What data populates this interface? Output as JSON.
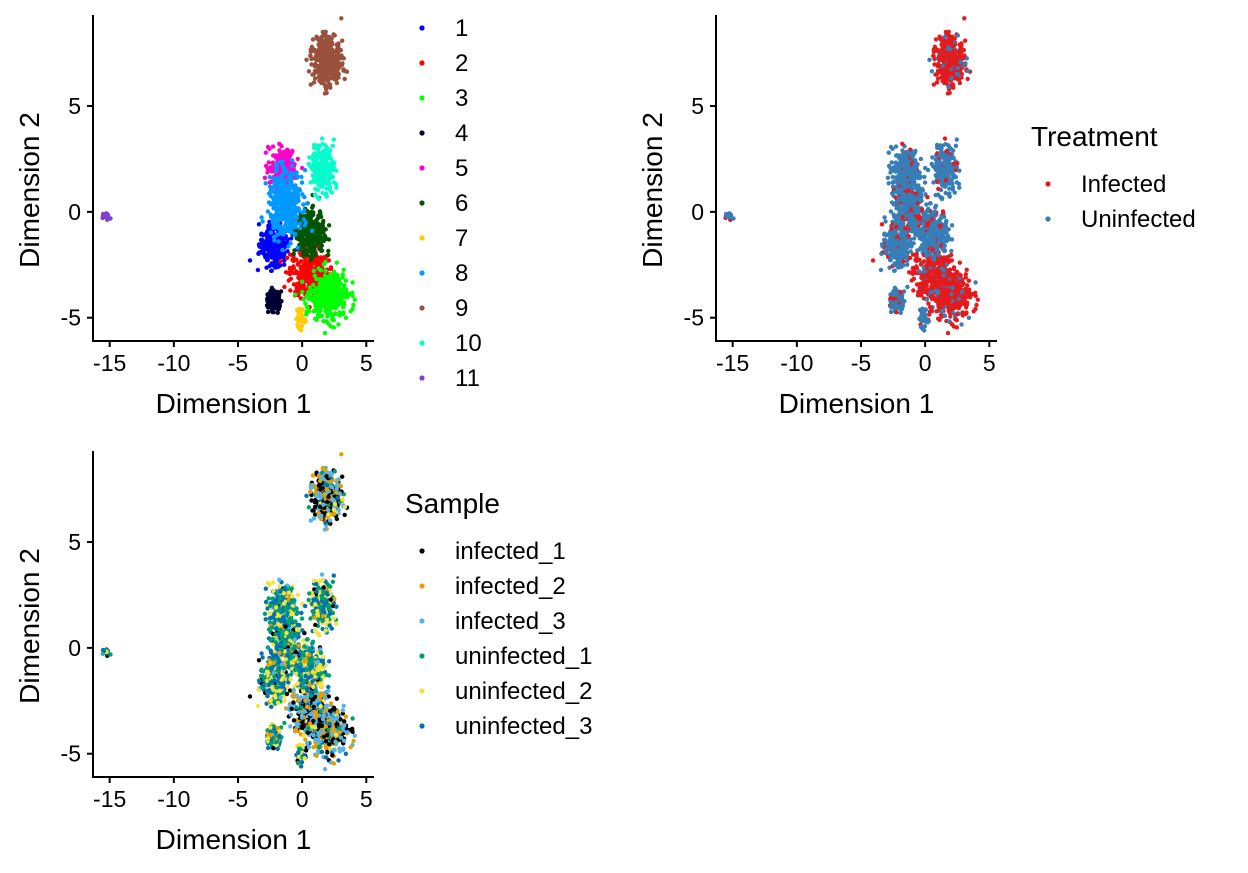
{
  "chart_data": [
    {
      "type": "scatter",
      "panel": "clusters",
      "xlabel": "Dimension 1",
      "ylabel": "Dimension 2",
      "xlim": [
        -16.3,
        5.6
      ],
      "ylim": [
        -6.1,
        9.3
      ],
      "xticks": [
        -15,
        -10,
        -5,
        0,
        5
      ],
      "yticks": [
        -5,
        0,
        5
      ],
      "legend": {
        "title": "",
        "position": "right"
      },
      "series": [
        {
          "name": "1",
          "color": "#0000FF",
          "x": -2.2,
          "y": -1.5
        },
        {
          "name": "2",
          "color": "#FF0000",
          "x": 0.5,
          "y": -3.0
        },
        {
          "name": "3",
          "color": "#00FF00",
          "x": 2.0,
          "y": -4.0
        },
        {
          "name": "4",
          "color": "#000033",
          "x": -2.2,
          "y": -4.2
        },
        {
          "name": "5",
          "color": "#FF00CC",
          "x": -1.5,
          "y": 2.0
        },
        {
          "name": "6",
          "color": "#005500",
          "x": 0.6,
          "y": -1.0
        },
        {
          "name": "7",
          "color": "#FFCC00",
          "x": -0.1,
          "y": -5.0
        },
        {
          "name": "8",
          "color": "#0099FF",
          "x": -1.2,
          "y": 0.5
        },
        {
          "name": "9",
          "color": "#99513D",
          "x": 2.0,
          "y": 7.0
        },
        {
          "name": "10",
          "color": "#00FFCC",
          "x": 1.6,
          "y": 2.0
        },
        {
          "name": "11",
          "color": "#8040CC",
          "x": -15.3,
          "y": -0.2
        }
      ]
    },
    {
      "type": "scatter",
      "panel": "treatment",
      "xlabel": "Dimension 1",
      "ylabel": "Dimension 2",
      "xlim": [
        -16.3,
        5.6
      ],
      "ylim": [
        -6.1,
        9.3
      ],
      "xticks": [
        -15,
        -10,
        -5,
        0,
        5
      ],
      "yticks": [
        -5,
        0,
        5
      ],
      "legend": {
        "title": "Treatment",
        "position": "right"
      },
      "series": [
        {
          "name": "Infected",
          "color": "#E41A1C"
        },
        {
          "name": "Uninfected",
          "color": "#377EB8"
        }
      ]
    },
    {
      "type": "scatter",
      "panel": "sample",
      "xlabel": "Dimension 1",
      "ylabel": "Dimension 2",
      "xlim": [
        -16.3,
        5.6
      ],
      "ylim": [
        -6.1,
        9.3
      ],
      "xticks": [
        -15,
        -10,
        -5,
        0,
        5
      ],
      "yticks": [
        -5,
        0,
        5
      ],
      "legend": {
        "title": "Sample",
        "position": "right"
      },
      "series": [
        {
          "name": "infected_1",
          "color": "#000000"
        },
        {
          "name": "infected_2",
          "color": "#E69F00"
        },
        {
          "name": "infected_3",
          "color": "#56B4E9"
        },
        {
          "name": "uninfected_1",
          "color": "#009E73"
        },
        {
          "name": "uninfected_2",
          "color": "#F0E442"
        },
        {
          "name": "uninfected_3",
          "color": "#0072B2"
        }
      ]
    }
  ]
}
